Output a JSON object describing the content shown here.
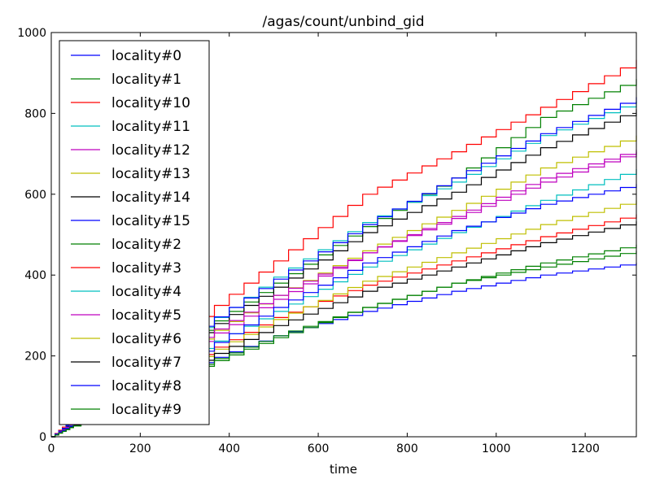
{
  "chart_data": {
    "type": "line",
    "title": "/agas/count/unbind_gid",
    "xlabel": "time",
    "ylabel": "",
    "xlim": [
      0,
      1315
    ],
    "ylim": [
      0,
      1000
    ],
    "xticks": [
      0,
      200,
      400,
      600,
      800,
      1000,
      1200
    ],
    "yticks": [
      0,
      200,
      400,
      600,
      800,
      1000
    ],
    "legend_position": "upper-left",
    "grid": false,
    "series": [
      {
        "name": "locality#0",
        "color": "#0000ff",
        "points": [
          [
            0,
            0
          ],
          [
            50,
            28
          ],
          [
            150,
            85
          ],
          [
            300,
            170
          ],
          [
            500,
            250
          ],
          [
            700,
            310
          ],
          [
            900,
            360
          ],
          [
            1100,
            400
          ],
          [
            1315,
            430
          ]
        ]
      },
      {
        "name": "locality#1",
        "color": "#008000",
        "points": [
          [
            0,
            0
          ],
          [
            50,
            40
          ],
          [
            150,
            125
          ],
          [
            300,
            240
          ],
          [
            500,
            380
          ],
          [
            700,
            520
          ],
          [
            900,
            640
          ],
          [
            1100,
            790
          ],
          [
            1315,
            885
          ]
        ]
      },
      {
        "name": "locality#10",
        "color": "#ff0000",
        "points": [
          [
            0,
            0
          ],
          [
            50,
            48
          ],
          [
            150,
            150
          ],
          [
            300,
            270
          ],
          [
            500,
            435
          ],
          [
            700,
            600
          ],
          [
            900,
            705
          ],
          [
            1100,
            815
          ],
          [
            1315,
            932
          ]
        ]
      },
      {
        "name": "locality#11",
        "color": "#00bfbf",
        "points": [
          [
            0,
            0
          ],
          [
            50,
            38
          ],
          [
            150,
            125
          ],
          [
            300,
            245
          ],
          [
            500,
            395
          ],
          [
            700,
            530
          ],
          [
            900,
            630
          ],
          [
            1100,
            745
          ],
          [
            1315,
            830
          ]
        ]
      },
      {
        "name": "locality#12",
        "color": "#bf00bf",
        "points": [
          [
            0,
            0
          ],
          [
            50,
            33
          ],
          [
            150,
            110
          ],
          [
            300,
            215
          ],
          [
            500,
            340
          ],
          [
            700,
            455
          ],
          [
            900,
            545
          ],
          [
            1100,
            640
          ],
          [
            1315,
            710
          ]
        ]
      },
      {
        "name": "locality#13",
        "color": "#bfbf00",
        "points": [
          [
            0,
            0
          ],
          [
            50,
            33
          ],
          [
            150,
            110
          ],
          [
            300,
            220
          ],
          [
            500,
            350
          ],
          [
            700,
            460
          ],
          [
            900,
            560
          ],
          [
            1100,
            665
          ],
          [
            1315,
            745
          ]
        ]
      },
      {
        "name": "locality#14",
        "color": "#000000",
        "points": [
          [
            0,
            0
          ],
          [
            50,
            37
          ],
          [
            150,
            120
          ],
          [
            300,
            235
          ],
          [
            500,
            370
          ],
          [
            700,
            505
          ],
          [
            900,
            605
          ],
          [
            1100,
            715
          ],
          [
            1315,
            810
          ]
        ]
      },
      {
        "name": "locality#15",
        "color": "#0000ff",
        "points": [
          [
            0,
            0
          ],
          [
            50,
            42
          ],
          [
            150,
            130
          ],
          [
            300,
            250
          ],
          [
            500,
            390
          ],
          [
            700,
            525
          ],
          [
            900,
            640
          ],
          [
            1100,
            750
          ],
          [
            1315,
            840
          ]
        ]
      },
      {
        "name": "locality#2",
        "color": "#008000",
        "points": [
          [
            0,
            0
          ],
          [
            50,
            27
          ],
          [
            150,
            82
          ],
          [
            300,
            165
          ],
          [
            500,
            250
          ],
          [
            700,
            320
          ],
          [
            900,
            380
          ],
          [
            1100,
            420
          ],
          [
            1315,
            460
          ]
        ]
      },
      {
        "name": "locality#3",
        "color": "#ff0000",
        "points": [
          [
            0,
            0
          ],
          [
            50,
            30
          ],
          [
            150,
            95
          ],
          [
            300,
            185
          ],
          [
            500,
            295
          ],
          [
            700,
            375
          ],
          [
            900,
            435
          ],
          [
            1100,
            495
          ],
          [
            1315,
            550
          ]
        ]
      },
      {
        "name": "locality#4",
        "color": "#00bfbf",
        "points": [
          [
            0,
            0
          ],
          [
            50,
            32
          ],
          [
            150,
            100
          ],
          [
            300,
            200
          ],
          [
            500,
            310
          ],
          [
            700,
            420
          ],
          [
            900,
            505
          ],
          [
            1100,
            585
          ],
          [
            1315,
            662
          ]
        ]
      },
      {
        "name": "locality#5",
        "color": "#bf00bf",
        "points": [
          [
            0,
            0
          ],
          [
            50,
            35
          ],
          [
            150,
            115
          ],
          [
            300,
            225
          ],
          [
            500,
            350
          ],
          [
            700,
            455
          ],
          [
            900,
            540
          ],
          [
            1100,
            630
          ],
          [
            1315,
            705
          ]
        ]
      },
      {
        "name": "locality#6",
        "color": "#bfbf00",
        "points": [
          [
            0,
            0
          ],
          [
            50,
            30
          ],
          [
            150,
            92
          ],
          [
            300,
            180
          ],
          [
            500,
            290
          ],
          [
            700,
            385
          ],
          [
            900,
            455
          ],
          [
            1100,
            525
          ],
          [
            1315,
            585
          ]
        ]
      },
      {
        "name": "locality#7",
        "color": "#000000",
        "points": [
          [
            0,
            0
          ],
          [
            50,
            29
          ],
          [
            150,
            88
          ],
          [
            300,
            172
          ],
          [
            500,
            275
          ],
          [
            700,
            360
          ],
          [
            900,
            420
          ],
          [
            1100,
            480
          ],
          [
            1315,
            533
          ]
        ]
      },
      {
        "name": "locality#8",
        "color": "#0000ff",
        "points": [
          [
            0,
            0
          ],
          [
            50,
            31
          ],
          [
            150,
            97
          ],
          [
            300,
            190
          ],
          [
            500,
            320
          ],
          [
            700,
            430
          ],
          [
            900,
            510
          ],
          [
            1100,
            575
          ],
          [
            1315,
            625
          ]
        ]
      },
      {
        "name": "locality#9",
        "color": "#008000",
        "points": [
          [
            0,
            0
          ],
          [
            50,
            27
          ],
          [
            150,
            80
          ],
          [
            300,
            160
          ],
          [
            500,
            245
          ],
          [
            700,
            320
          ],
          [
            900,
            380
          ],
          [
            1100,
            430
          ],
          [
            1315,
            475
          ]
        ]
      }
    ]
  }
}
